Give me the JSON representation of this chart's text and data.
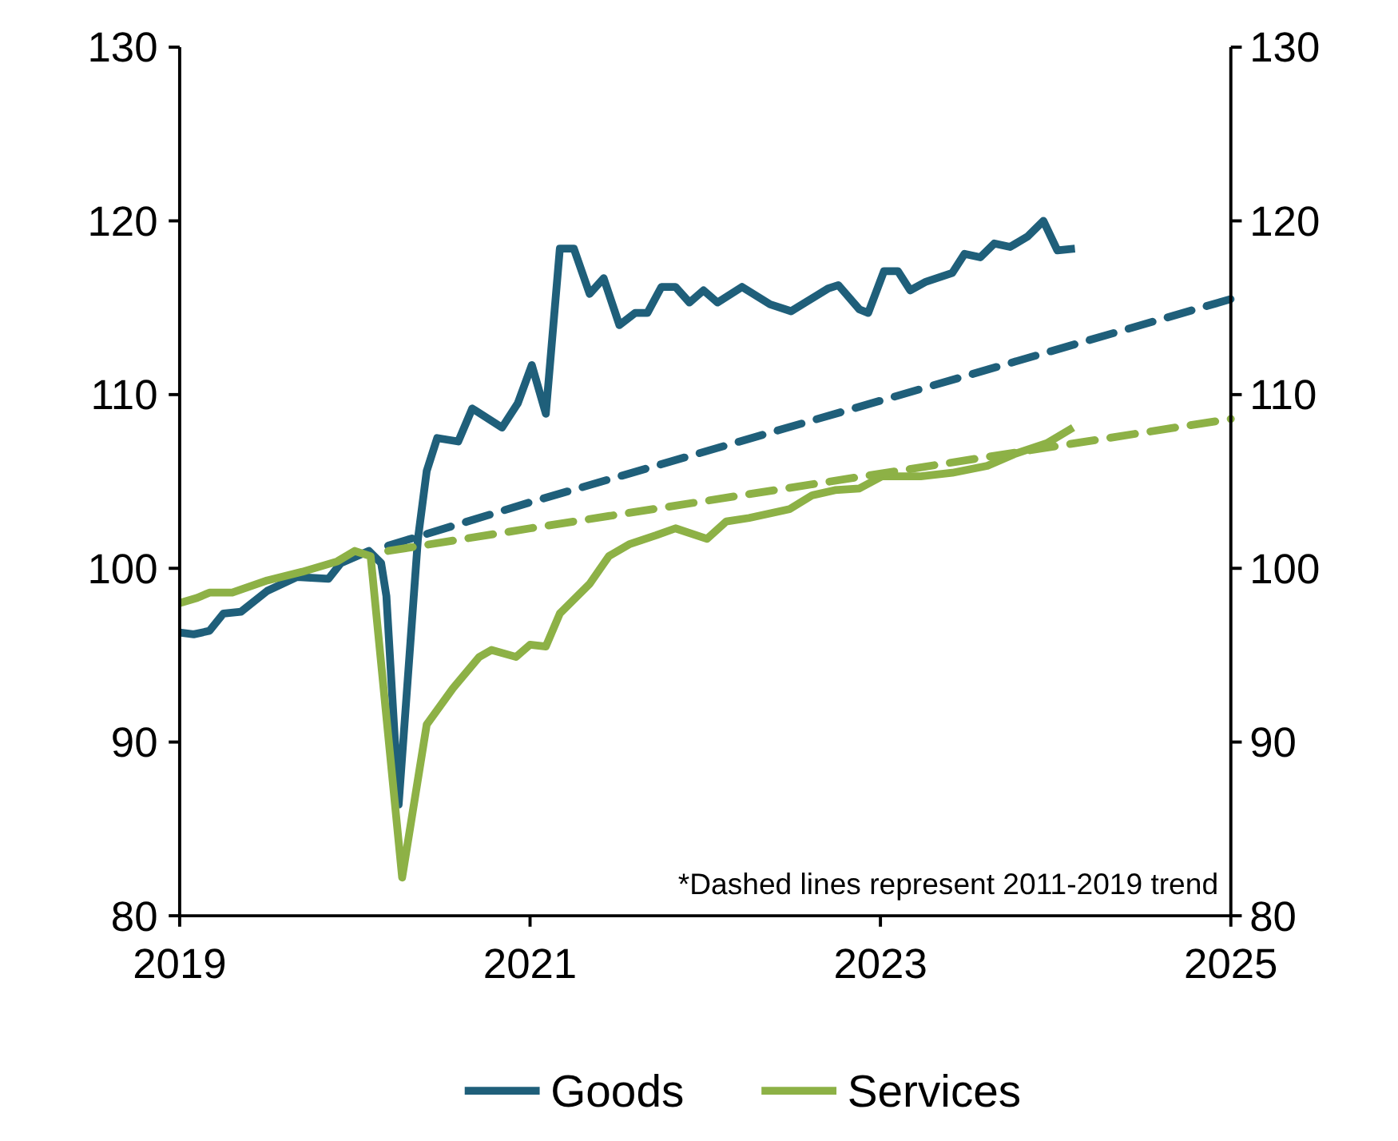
{
  "chart_data": {
    "type": "line",
    "xlim": [
      2019,
      2025
    ],
    "xticks": [
      2019,
      2021,
      2023,
      2025
    ],
    "ylim": [
      80,
      130
    ],
    "yticks": [
      80,
      90,
      100,
      110,
      120,
      130
    ],
    "y2lim": [
      80,
      130
    ],
    "y2ticks": [
      80,
      90,
      100,
      110,
      120,
      130
    ],
    "grid": false,
    "legend": "bottom",
    "annotations": [
      "*Dashed lines represent 2011-2019 trend"
    ],
    "series": [
      {
        "name": "Goods",
        "color": "#1f5f7a",
        "line_style": "solid",
        "x": [
          2019.0,
          2019.08,
          2019.17,
          2019.25,
          2019.35,
          2019.5,
          2019.67,
          2019.85,
          2019.92,
          2020.08,
          2020.15,
          2020.18,
          2020.25,
          2020.36,
          2020.41,
          2020.47,
          2020.59,
          2020.67,
          2020.84,
          2020.93,
          2021.01,
          2021.09,
          2021.17,
          2021.25,
          2021.34,
          2021.42,
          2021.51,
          2021.6,
          2021.67,
          2021.75,
          2021.83,
          2021.91,
          2021.99,
          2022.07,
          2022.21,
          2022.37,
          2022.49,
          2022.7,
          2022.76,
          2022.88,
          2022.93,
          2023.02,
          2023.1,
          2023.17,
          2023.26,
          2023.41,
          2023.48,
          2023.57,
          2023.65,
          2023.74,
          2023.84,
          2023.93,
          2024.01,
          2024.11
        ],
        "values": [
          96.3,
          96.2,
          96.4,
          97.4,
          97.5,
          98.7,
          99.5,
          99.4,
          100.3,
          101.0,
          100.3,
          98.4,
          86.4,
          101.7,
          105.6,
          107.5,
          107.3,
          109.2,
          108.1,
          109.5,
          111.7,
          108.9,
          118.4,
          118.4,
          115.8,
          116.7,
          114.0,
          114.7,
          114.7,
          116.2,
          116.2,
          115.3,
          116.0,
          115.3,
          116.2,
          115.2,
          114.8,
          116.1,
          116.3,
          114.9,
          114.7,
          117.1,
          117.1,
          116.0,
          116.5,
          117.0,
          118.1,
          117.9,
          118.7,
          118.5,
          119.1,
          120.0,
          118.3,
          118.4
        ]
      },
      {
        "name": "Services",
        "color": "#8db146",
        "line_style": "solid",
        "x": [
          2019.0,
          2019.1,
          2019.17,
          2019.3,
          2019.5,
          2019.7,
          2019.9,
          2020.0,
          2020.09,
          2020.27,
          2020.41,
          2020.56,
          2020.71,
          2020.78,
          2020.92,
          2021.0,
          2021.09,
          2021.17,
          2021.34,
          2021.45,
          2021.57,
          2021.72,
          2021.83,
          2022.01,
          2022.12,
          2022.25,
          2022.48,
          2022.61,
          2022.74,
          2022.88,
          2023.01,
          2023.23,
          2023.41,
          2023.61,
          2023.77,
          2023.95,
          2024.1
        ],
        "values": [
          98.0,
          98.3,
          98.6,
          98.6,
          99.3,
          99.8,
          100.4,
          101.0,
          100.7,
          82.2,
          91.0,
          93.1,
          94.9,
          95.3,
          94.9,
          95.6,
          95.5,
          97.4,
          99.1,
          100.7,
          101.4,
          101.9,
          102.3,
          101.7,
          102.7,
          102.9,
          103.4,
          104.2,
          104.5,
          104.6,
          105.3,
          105.3,
          105.5,
          105.9,
          106.6,
          107.2,
          108.1
        ]
      },
      {
        "color": "#1f5f7a",
        "line_style": "dashed",
        "x": [
          2020.19,
          2021.0,
          2025.0
        ],
        "values": [
          101.3,
          103.8,
          115.5
        ]
      },
      {
        "color": "#8db146",
        "line_style": "dashed",
        "x": [
          2020.19,
          2021.0,
          2025.0
        ],
        "values": [
          101.0,
          102.3,
          108.6
        ]
      }
    ]
  }
}
